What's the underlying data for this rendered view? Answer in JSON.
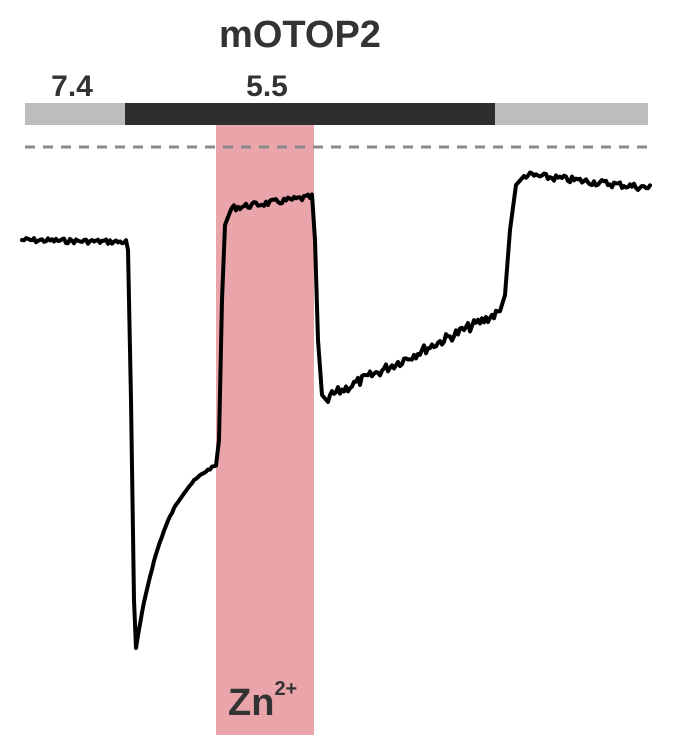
{
  "title": "mOTOP2",
  "ph_labels": {
    "baseline": "7.4",
    "acid": "5.5"
  },
  "treatment": {
    "ion": "Zn",
    "charge": "2+"
  },
  "colors": {
    "baseline_bar": "#bdbdbd",
    "acid_bar": "#2e2e2e",
    "zn_band": "#eaa5aa",
    "trace": "#000000",
    "zero_line": "#888888",
    "text": "#333333"
  }
}
